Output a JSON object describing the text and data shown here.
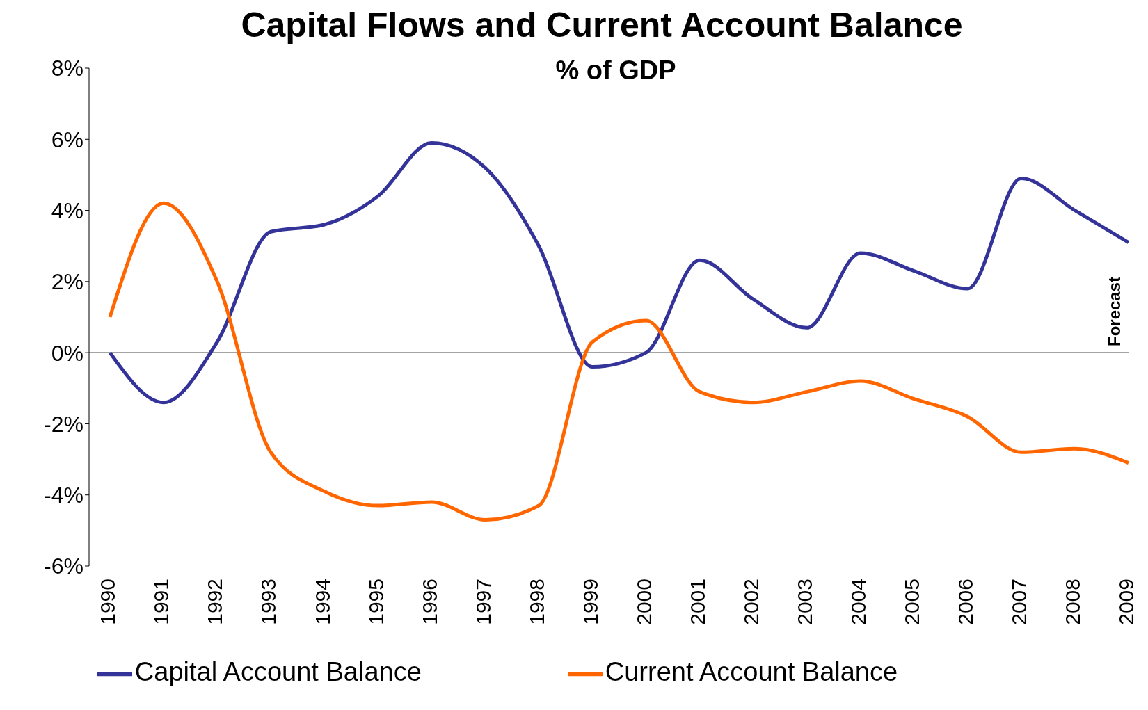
{
  "chart_data": {
    "type": "line",
    "title": "Capital Flows and Current Account Balance",
    "subtitle": "% of GDP",
    "categories": [
      "1990",
      "1991",
      "1992",
      "1993",
      "1994",
      "1995",
      "1996",
      "1997",
      "1998",
      "1999",
      "2000",
      "2001",
      "2002",
      "2003",
      "2004",
      "2005",
      "2006",
      "2007",
      "2008",
      "2009"
    ],
    "series": [
      {
        "name": "Capital Account Balance",
        "color": "#333399",
        "values": [
          0,
          -1.4,
          0.3,
          3.4,
          3.6,
          4.4,
          5.9,
          5.2,
          3.0,
          -0.4,
          0.0,
          2.6,
          1.5,
          0.7,
          2.8,
          2.3,
          1.8,
          4.9,
          4.0,
          3.1
        ]
      },
      {
        "name": "Current Account Balance",
        "color": "#ff6600",
        "values": [
          1.0,
          4.2,
          2.0,
          -2.8,
          -3.9,
          -4.3,
          -4.2,
          -4.7,
          -4.3,
          0.3,
          0.9,
          -1.1,
          -1.4,
          -1.1,
          -0.8,
          -1.3,
          -1.8,
          -2.8,
          -2.7,
          -3.1
        ]
      }
    ],
    "ylim": [
      -6,
      8
    ],
    "yticks": [
      {
        "value": -6,
        "label": "-6%"
      },
      {
        "value": -4,
        "label": "-4%"
      },
      {
        "value": -2,
        "label": "-2%"
      },
      {
        "value": 0,
        "label": "0%"
      },
      {
        "value": 2,
        "label": "2%"
      },
      {
        "value": 4,
        "label": "4%"
      },
      {
        "value": 6,
        "label": "6%"
      },
      {
        "value": 8,
        "label": "8%"
      }
    ],
    "ref_lines": [
      {
        "axis": "y",
        "value": 0,
        "color": "#000000"
      }
    ],
    "annotations": [
      "Forecast"
    ],
    "grid": false,
    "legend": "bottom",
    "marker": "none",
    "line_style": "solid"
  }
}
